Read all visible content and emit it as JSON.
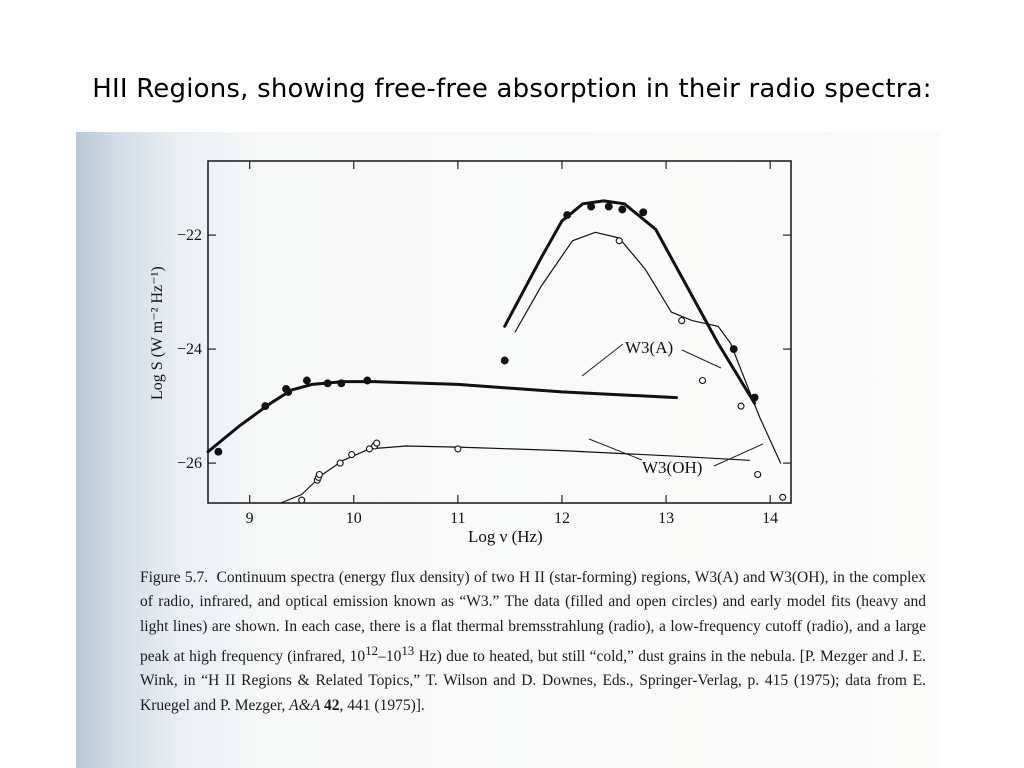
{
  "slide": {
    "title": "HII Regions, showing free-free absorption in their radio spectra:"
  },
  "figure": {
    "label": "Figure 5.7.",
    "caption_parts": {
      "p1": "Continuum spectra (energy flux density) of two H II (star-forming) regions, W3(A) and W3(OH), in the complex of radio, infrared, and optical emission known as “W3.” The data (filled and open circles) and early model fits (heavy and light lines) are shown. In each case, there is a flat thermal bremsstrahlung (radio), a low-frequency cutoff (radio), and a large peak at high frequency (infrared, 10",
      "sup1": "12",
      "dash": "–10",
      "sup2": "13",
      "p2": " Hz) due to heated, but still “cold,” dust grains in the nebula. [P. Mezger and J. E. Wink, in “H II Regions & Related Topics,” T. Wilson and D. Downes, Eds., Springer-Verlag, p. 415 (1975); data from E. Kruegel and P. Mezger, ",
      "journal": "A&A",
      "volume": "42",
      "p3": ", 441 (1975)]."
    }
  },
  "chart_data": {
    "type": "scatter",
    "xlabel": "Log ν (Hz)",
    "ylabel": "Log S (W m⁻² Hz⁻¹)",
    "xlim": [
      8.6,
      14.2
    ],
    "ylim": [
      -26.7,
      -20.7
    ],
    "x_ticks": [
      9,
      10,
      11,
      12,
      13,
      14
    ],
    "y_ticks": [
      -22,
      -24,
      -26
    ],
    "annotations": [
      "W3(A)",
      "W3(OH)"
    ],
    "series": [
      {
        "name": "W3(A)",
        "marker": "filled",
        "points": [
          [
            8.7,
            -25.8
          ],
          [
            9.15,
            -25.0
          ],
          [
            9.35,
            -24.7
          ],
          [
            9.37,
            -24.75
          ],
          [
            9.55,
            -24.55
          ],
          [
            9.75,
            -24.6
          ],
          [
            9.88,
            -24.6
          ],
          [
            10.13,
            -24.55
          ],
          [
            11.45,
            -24.2
          ],
          [
            12.05,
            -21.65
          ],
          [
            12.28,
            -21.5
          ],
          [
            12.45,
            -21.5
          ],
          [
            12.58,
            -21.55
          ],
          [
            12.78,
            -21.6
          ],
          [
            13.65,
            -24.0
          ],
          [
            13.85,
            -24.85
          ]
        ],
        "model_heavy": [
          [
            8.6,
            -25.8
          ],
          [
            8.9,
            -25.35
          ],
          [
            9.2,
            -24.95
          ],
          [
            9.4,
            -24.72
          ],
          [
            9.6,
            -24.62
          ],
          [
            9.9,
            -24.57
          ],
          [
            10.2,
            -24.57
          ],
          [
            11.0,
            -24.62
          ],
          [
            12.0,
            -24.75
          ],
          [
            13.1,
            -24.85
          ]
        ],
        "peak_heavy": [
          [
            11.45,
            -23.6
          ],
          [
            11.8,
            -22.4
          ],
          [
            12.0,
            -21.75
          ],
          [
            12.2,
            -21.45
          ],
          [
            12.4,
            -21.4
          ],
          [
            12.6,
            -21.45
          ],
          [
            12.9,
            -21.9
          ],
          [
            13.2,
            -22.9
          ],
          [
            13.5,
            -23.9
          ],
          [
            13.85,
            -24.95
          ]
        ],
        "model_light": [
          [
            11.55,
            -23.7
          ],
          [
            11.8,
            -22.9
          ],
          [
            12.1,
            -22.1
          ],
          [
            12.32,
            -21.95
          ],
          [
            12.55,
            -22.05
          ],
          [
            12.8,
            -22.6
          ],
          [
            13.05,
            -23.35
          ],
          [
            13.25,
            -23.5
          ],
          [
            13.5,
            -23.6
          ],
          [
            13.62,
            -23.9
          ],
          [
            13.9,
            -25.2
          ],
          [
            14.1,
            -26.0
          ]
        ]
      },
      {
        "name": "W3(OH)",
        "marker": "open",
        "points": [
          [
            9.5,
            -26.65
          ],
          [
            9.65,
            -26.3
          ],
          [
            9.66,
            -26.25
          ],
          [
            9.67,
            -26.2
          ],
          [
            9.87,
            -26.0
          ],
          [
            9.98,
            -25.85
          ],
          [
            10.15,
            -25.75
          ],
          [
            10.2,
            -25.7
          ],
          [
            10.22,
            -25.65
          ],
          [
            11.0,
            -25.75
          ],
          [
            12.55,
            -22.1
          ],
          [
            13.15,
            -23.5
          ],
          [
            13.35,
            -24.55
          ],
          [
            13.72,
            -25.0
          ],
          [
            13.88,
            -26.2
          ],
          [
            14.12,
            -26.6
          ]
        ],
        "model_light": [
          [
            9.3,
            -26.7
          ],
          [
            9.5,
            -26.55
          ],
          [
            9.7,
            -26.2
          ],
          [
            9.9,
            -25.95
          ],
          [
            10.15,
            -25.75
          ],
          [
            10.5,
            -25.7
          ],
          [
            11.0,
            -25.72
          ],
          [
            12.0,
            -25.78
          ],
          [
            13.0,
            -25.87
          ],
          [
            13.8,
            -25.95
          ]
        ]
      }
    ]
  }
}
